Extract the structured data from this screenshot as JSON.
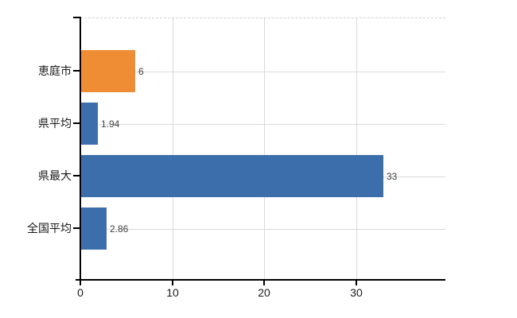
{
  "chart_data": {
    "type": "bar",
    "orientation": "horizontal",
    "title": "",
    "xlabel": "",
    "ylabel": "",
    "categories": [
      "恵庭市",
      "県平均",
      "県最大",
      "全国平均"
    ],
    "values": [
      6,
      1.94,
      33,
      2.86
    ],
    "value_labels": [
      "6",
      "1.94",
      "33",
      "2.86"
    ],
    "bar_colors": [
      "#ef8d34",
      "#3d6eac",
      "#3d6eac",
      "#3d6eac"
    ],
    "x_ticks": [
      0,
      10,
      20,
      30
    ],
    "x_tick_labels": [
      "0",
      "10",
      "20",
      "30"
    ],
    "xlim": [
      0,
      39.7
    ],
    "grid": true,
    "legend": false,
    "colors": {
      "bar_orange": "#ef8d34",
      "bar_blue": "#3d6eac",
      "grid": "#d9d9d9",
      "axis": "#000000",
      "tick_text": "#1a1a1a",
      "value_text": "#404040"
    }
  }
}
